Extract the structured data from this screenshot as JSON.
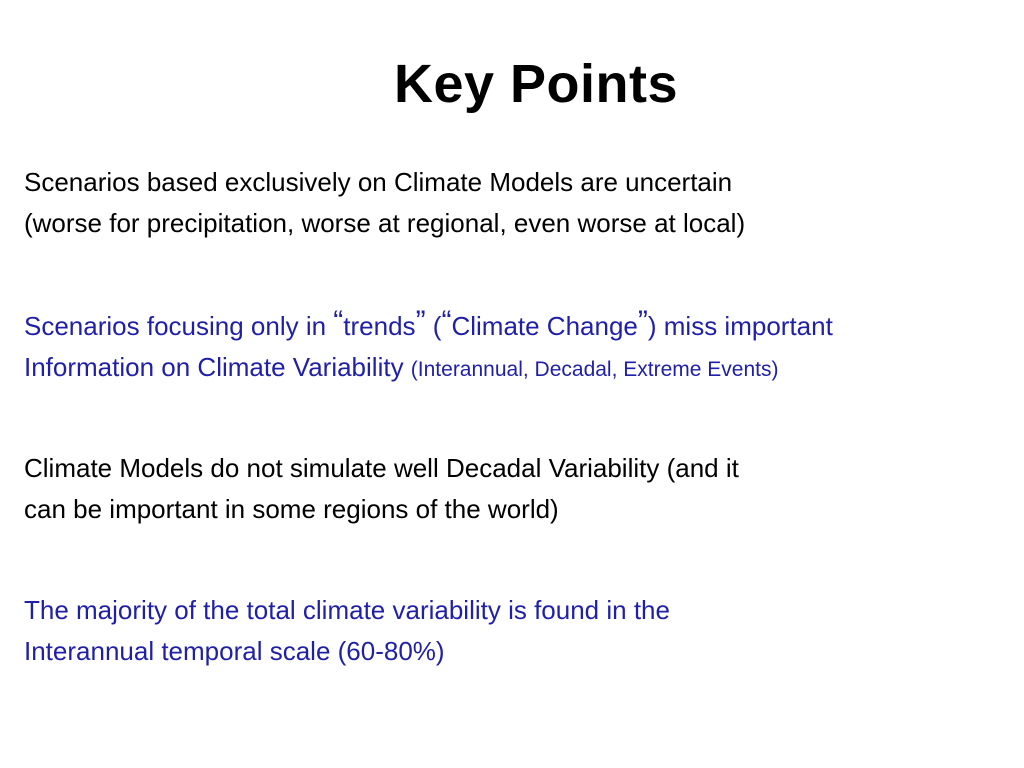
{
  "slide": {
    "title": "Key Points",
    "points": [
      {
        "line1": "Scenarios based exclusively on Climate Models are uncertain",
        "line2": "(worse for precipitation, worse at regional, even worse at local)"
      },
      {
        "part1": "Scenarios focusing only in ",
        "q1_open": "“",
        "trends": "trends",
        "q1_close": "”",
        "part2": " (",
        "q2_open": "“",
        "climate_change": "Climate Change",
        "q2_close": "”",
        "part3": ") miss important",
        "line2_main": "Information on Climate Variability ",
        "line2_small": "(Interannual, Decadal, Extreme Events)"
      },
      {
        "line1": "Climate Models do not simulate well Decadal Variability (and it",
        "line2": "can be important in some regions of the world)"
      },
      {
        "line1": "The majority of the total climate variability is found in the",
        "line2": "Interannual temporal scale (60-80%)"
      }
    ]
  },
  "colors": {
    "text": "#000000",
    "blue_text": "#1f1fa8",
    "background": "#ffffff"
  }
}
